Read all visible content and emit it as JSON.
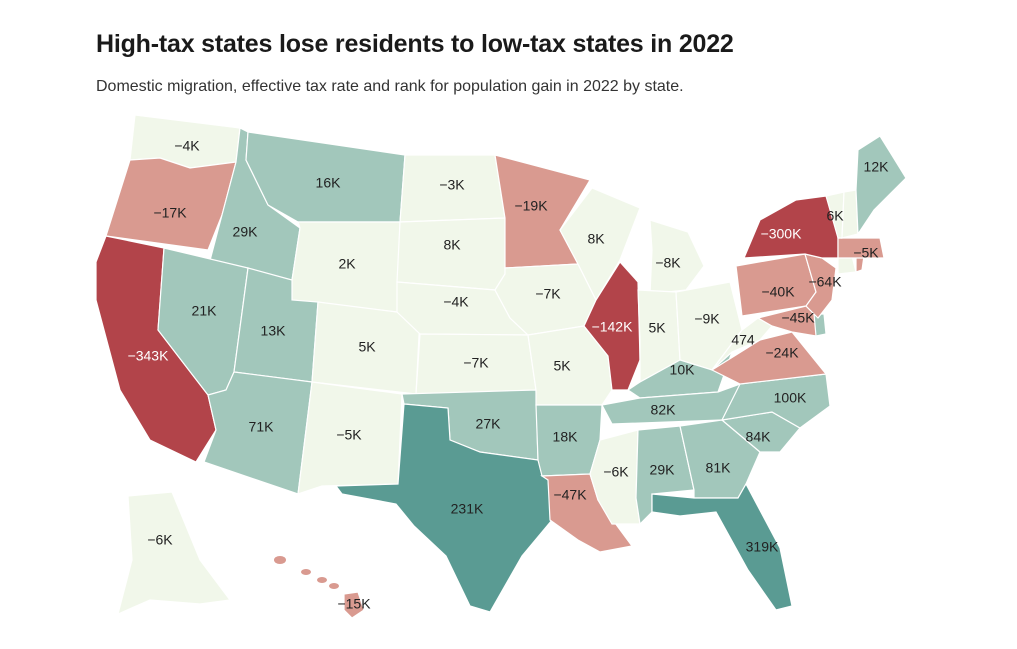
{
  "header": {
    "title": "High-tax states lose residents to low-tax states in 2022",
    "subtitle": "Domestic migration, effective tax rate and rank for population gain in 2022 by state."
  },
  "colors": {
    "very_neg": "#b2444a",
    "neg": "#d99a90",
    "near_zero": "#f1f7ea",
    "pos": "#a2c7bb",
    "very_pos": "#5a9b93"
  },
  "states": [
    {
      "name": "Washington",
      "label": "−4K",
      "bucket": "near_zero"
    },
    {
      "name": "Oregon",
      "label": "−17K",
      "bucket": "neg"
    },
    {
      "name": "California",
      "label": "−343K",
      "bucket": "very_neg"
    },
    {
      "name": "Idaho",
      "label": "29K",
      "bucket": "pos"
    },
    {
      "name": "Nevada",
      "label": "21K",
      "bucket": "pos"
    },
    {
      "name": "Montana",
      "label": "16K",
      "bucket": "pos"
    },
    {
      "name": "Wyoming",
      "label": "2K",
      "bucket": "near_zero"
    },
    {
      "name": "Utah",
      "label": "13K",
      "bucket": "pos"
    },
    {
      "name": "Arizona",
      "label": "71K",
      "bucket": "pos"
    },
    {
      "name": "Colorado",
      "label": "5K",
      "bucket": "near_zero"
    },
    {
      "name": "New Mexico",
      "label": "−5K",
      "bucket": "near_zero"
    },
    {
      "name": "North Dakota",
      "label": "−3K",
      "bucket": "near_zero"
    },
    {
      "name": "South Dakota",
      "label": "8K",
      "bucket": "near_zero"
    },
    {
      "name": "Nebraska",
      "label": "−4K",
      "bucket": "near_zero"
    },
    {
      "name": "Kansas",
      "label": "−7K",
      "bucket": "near_zero"
    },
    {
      "name": "Oklahoma",
      "label": "27K",
      "bucket": "pos"
    },
    {
      "name": "Texas",
      "label": "231K",
      "bucket": "very_pos"
    },
    {
      "name": "Minnesota",
      "label": "−19K",
      "bucket": "neg"
    },
    {
      "name": "Iowa",
      "label": "−7K",
      "bucket": "near_zero"
    },
    {
      "name": "Missouri",
      "label": "5K",
      "bucket": "near_zero"
    },
    {
      "name": "Arkansas",
      "label": "18K",
      "bucket": "pos"
    },
    {
      "name": "Louisiana",
      "label": "−47K",
      "bucket": "neg"
    },
    {
      "name": "Wisconsin",
      "label": "8K",
      "bucket": "near_zero"
    },
    {
      "name": "Illinois",
      "label": "−142K",
      "bucket": "very_neg"
    },
    {
      "name": "Michigan",
      "label": "−8K",
      "bucket": "near_zero"
    },
    {
      "name": "Indiana",
      "label": "5K",
      "bucket": "near_zero"
    },
    {
      "name": "Ohio",
      "label": "−9K",
      "bucket": "near_zero"
    },
    {
      "name": "Kentucky",
      "label": "10K",
      "bucket": "pos"
    },
    {
      "name": "Tennessee",
      "label": "82K",
      "bucket": "pos"
    },
    {
      "name": "Mississippi",
      "label": "−6K",
      "bucket": "near_zero"
    },
    {
      "name": "Alabama",
      "label": "29K",
      "bucket": "pos"
    },
    {
      "name": "Georgia",
      "label": "81K",
      "bucket": "pos"
    },
    {
      "name": "Florida",
      "label": "319K",
      "bucket": "very_pos"
    },
    {
      "name": "South Carolina",
      "label": "84K",
      "bucket": "pos"
    },
    {
      "name": "North Carolina",
      "label": "100K",
      "bucket": "pos"
    },
    {
      "name": "Virginia",
      "label": "−24K",
      "bucket": "neg"
    },
    {
      "name": "West Virginia",
      "label": "474",
      "bucket": "near_zero"
    },
    {
      "name": "Pennsylvania",
      "label": "−40K",
      "bucket": "neg"
    },
    {
      "name": "Maryland",
      "label": "−45K",
      "bucket": "neg"
    },
    {
      "name": "Delaware",
      "label": "",
      "bucket": "pos"
    },
    {
      "name": "New Jersey",
      "label": "−64K",
      "bucket": "neg"
    },
    {
      "name": "New York",
      "label": "−300K",
      "bucket": "very_neg"
    },
    {
      "name": "Connecticut",
      "label": "",
      "bucket": "near_zero"
    },
    {
      "name": "Rhode Island",
      "label": "",
      "bucket": "neg"
    },
    {
      "name": "Massachusetts",
      "label": "−5K",
      "bucket": "neg"
    },
    {
      "name": "Vermont",
      "label": "6K",
      "bucket": "near_zero"
    },
    {
      "name": "New Hampshire",
      "label": "",
      "bucket": "near_zero"
    },
    {
      "name": "Maine",
      "label": "12K",
      "bucket": "pos"
    },
    {
      "name": "Alaska",
      "label": "−6K",
      "bucket": "near_zero"
    },
    {
      "name": "Hawaii",
      "label": "−15K",
      "bucket": "neg"
    }
  ]
}
